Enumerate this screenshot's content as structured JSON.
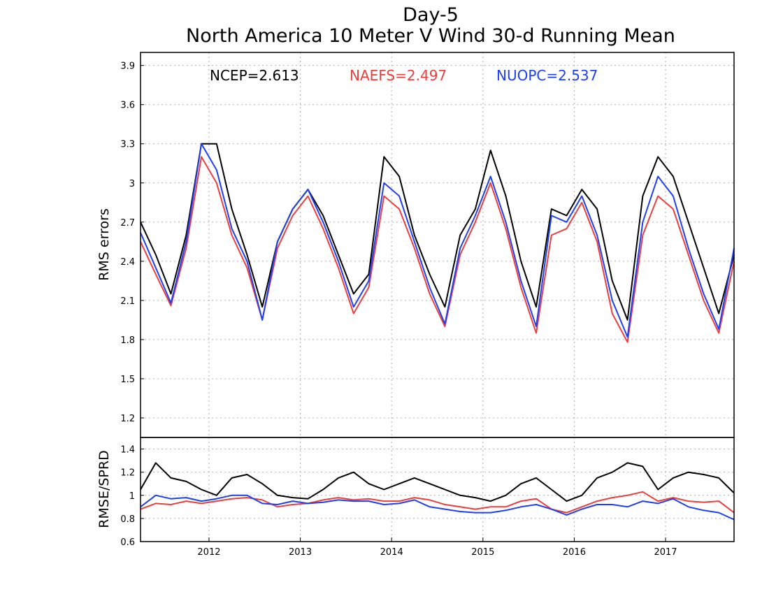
{
  "title_line1": "Day-5",
  "title_line2": "North America 10 Meter V Wind 30-d Running Mean",
  "chart_data": [
    {
      "type": "line",
      "ylabel": "RMS errors",
      "x_ticks": [
        "2012",
        "2013",
        "2014",
        "2015",
        "2016",
        "2017"
      ],
      "x_range": [
        "2011-04",
        "2017-10"
      ],
      "ylim": [
        1.05,
        4.0
      ],
      "y_ticks": [
        "1.2",
        "1.5",
        "1.8",
        "2.1",
        "2.4",
        "2.7",
        "3",
        "3.3",
        "3.6",
        "3.9"
      ],
      "grid": true,
      "x": [
        "2011-04",
        "2011-06",
        "2011-08",
        "2011-10",
        "2011-12",
        "2012-02",
        "2012-04",
        "2012-06",
        "2012-08",
        "2012-10",
        "2012-12",
        "2013-02",
        "2013-04",
        "2013-06",
        "2013-08",
        "2013-10",
        "2013-12",
        "2014-02",
        "2014-04",
        "2014-06",
        "2014-08",
        "2014-10",
        "2014-12",
        "2015-02",
        "2015-04",
        "2015-06",
        "2015-08",
        "2015-10",
        "2015-12",
        "2016-02",
        "2016-04",
        "2016-06",
        "2016-08",
        "2016-10",
        "2016-12",
        "2017-02",
        "2017-04",
        "2017-06",
        "2017-08",
        "2017-10"
      ],
      "series": [
        {
          "name": "NCEP",
          "color": "#000000",
          "values": [
            2.7,
            2.45,
            2.15,
            2.6,
            3.3,
            3.3,
            2.8,
            2.45,
            2.05,
            2.55,
            2.8,
            2.95,
            2.75,
            2.45,
            2.15,
            2.3,
            3.2,
            3.05,
            2.6,
            2.3,
            2.05,
            2.6,
            2.8,
            3.25,
            2.9,
            2.4,
            2.05,
            2.8,
            2.75,
            2.95,
            2.8,
            2.25,
            1.95,
            2.9,
            3.2,
            3.05,
            2.7,
            2.35,
            2.0,
            2.45
          ]
        },
        {
          "name": "NAEFS",
          "color": "#e84040",
          "values": [
            2.55,
            2.3,
            2.06,
            2.5,
            3.2,
            3.0,
            2.6,
            2.35,
            1.95,
            2.5,
            2.75,
            2.9,
            2.65,
            2.35,
            2.0,
            2.2,
            2.9,
            2.8,
            2.5,
            2.15,
            1.9,
            2.45,
            2.7,
            3.0,
            2.65,
            2.2,
            1.85,
            2.6,
            2.65,
            2.85,
            2.55,
            2.0,
            1.78,
            2.6,
            2.9,
            2.8,
            2.45,
            2.1,
            1.85,
            2.4
          ]
        },
        {
          "name": "NUOPC",
          "color": "#2040ee",
          "values": [
            2.62,
            2.35,
            2.08,
            2.55,
            3.3,
            3.1,
            2.65,
            2.4,
            1.95,
            2.55,
            2.8,
            2.95,
            2.7,
            2.4,
            2.05,
            2.25,
            3.0,
            2.9,
            2.55,
            2.2,
            1.92,
            2.5,
            2.75,
            3.05,
            2.7,
            2.25,
            1.9,
            2.75,
            2.7,
            2.9,
            2.6,
            2.1,
            1.82,
            2.7,
            3.05,
            2.9,
            2.5,
            2.15,
            1.88,
            2.5
          ]
        }
      ],
      "legend": [
        {
          "label": "NCEP=2.613",
          "color": "#000000"
        },
        {
          "label": "NAEFS=2.497",
          "color": "#e84040"
        },
        {
          "label": "NUOPC=2.537",
          "color": "#2040ee"
        }
      ]
    },
    {
      "type": "line",
      "ylabel": "RMSE/SPRD",
      "ylim": [
        0.6,
        1.5
      ],
      "y_ticks": [
        "0.6",
        "0.8",
        "1",
        "1.2",
        "1.4"
      ],
      "grid": true,
      "x": [
        "2011-04",
        "2011-06",
        "2011-08",
        "2011-10",
        "2011-12",
        "2012-02",
        "2012-04",
        "2012-06",
        "2012-08",
        "2012-10",
        "2012-12",
        "2013-02",
        "2013-04",
        "2013-06",
        "2013-08",
        "2013-10",
        "2013-12",
        "2014-02",
        "2014-04",
        "2014-06",
        "2014-08",
        "2014-10",
        "2014-12",
        "2015-02",
        "2015-04",
        "2015-06",
        "2015-08",
        "2015-10",
        "2015-12",
        "2016-02",
        "2016-04",
        "2016-06",
        "2016-08",
        "2016-10",
        "2016-12",
        "2017-02",
        "2017-04",
        "2017-06",
        "2017-08",
        "2017-10"
      ],
      "series": [
        {
          "name": "NCEP",
          "color": "#000000",
          "values": [
            1.05,
            1.28,
            1.15,
            1.12,
            1.05,
            1.0,
            1.15,
            1.18,
            1.1,
            1.0,
            0.98,
            0.97,
            1.05,
            1.15,
            1.2,
            1.1,
            1.05,
            1.1,
            1.15,
            1.1,
            1.05,
            1.0,
            0.98,
            0.95,
            1.0,
            1.1,
            1.15,
            1.05,
            0.95,
            1.0,
            1.15,
            1.2,
            1.28,
            1.25,
            1.05,
            1.15,
            1.2,
            1.18,
            1.15,
            1.02
          ]
        },
        {
          "name": "NAEFS",
          "color": "#e84040",
          "values": [
            0.88,
            0.93,
            0.92,
            0.95,
            0.93,
            0.95,
            0.97,
            0.98,
            0.96,
            0.9,
            0.92,
            0.93,
            0.96,
            0.98,
            0.96,
            0.97,
            0.95,
            0.95,
            0.98,
            0.96,
            0.92,
            0.9,
            0.88,
            0.9,
            0.9,
            0.95,
            0.97,
            0.88,
            0.85,
            0.9,
            0.95,
            0.98,
            1.0,
            1.03,
            0.95,
            0.98,
            0.95,
            0.94,
            0.95,
            0.85
          ]
        },
        {
          "name": "NUOPC",
          "color": "#2040ee",
          "values": [
            0.9,
            1.0,
            0.97,
            0.98,
            0.95,
            0.97,
            1.0,
            1.0,
            0.93,
            0.92,
            0.95,
            0.93,
            0.94,
            0.96,
            0.95,
            0.95,
            0.92,
            0.93,
            0.96,
            0.9,
            0.88,
            0.86,
            0.85,
            0.85,
            0.87,
            0.9,
            0.92,
            0.88,
            0.83,
            0.88,
            0.92,
            0.92,
            0.9,
            0.95,
            0.93,
            0.97,
            0.9,
            0.87,
            0.85,
            0.79
          ]
        }
      ]
    }
  ]
}
